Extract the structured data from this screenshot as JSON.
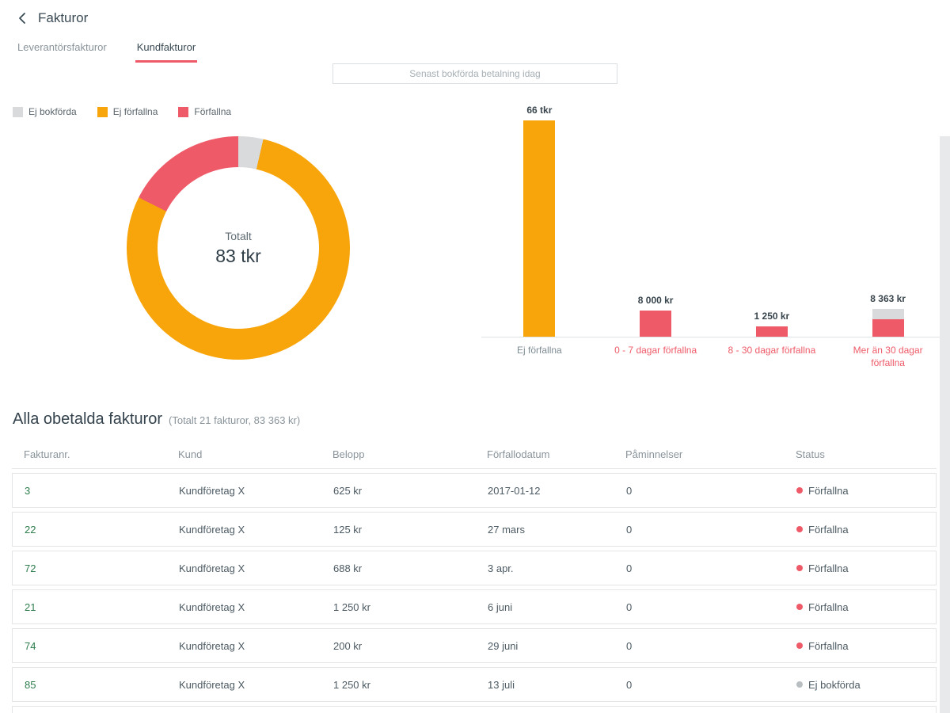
{
  "colors": {
    "accent_red": "#ee5a68",
    "orange": "#f7a50a",
    "gray_status": "#d8dadb",
    "green": "#2e7d4c",
    "text_primary": "#3a4a54",
    "text_secondary": "#8a949b"
  },
  "header": {
    "title": "Fakturor",
    "tabs": [
      {
        "label": "Leverantörsfakturor",
        "active": false
      },
      {
        "label": "Kundfakturor",
        "active": true
      }
    ]
  },
  "toolbar": {
    "last_payment_label": "Senast bokförda betalning idag"
  },
  "legend": [
    {
      "label": "Ej bokförda",
      "color": "#d8dadb"
    },
    {
      "label": "Ej förfallna",
      "color": "#f7a50a"
    },
    {
      "label": "Förfallna",
      "color": "#ee5a68"
    }
  ],
  "chart_data": [
    {
      "type": "pie",
      "center_label": "Totalt",
      "center_value": "83 tkr",
      "slices": [
        {
          "label": "Ej bokförda",
          "value": 3000,
          "color": "#d8dadb"
        },
        {
          "label": "Ej förfallna",
          "value": 65750,
          "color": "#f7a50a"
        },
        {
          "label": "Förfallna",
          "value": 14613,
          "color": "#ee5a68"
        }
      ],
      "total_label": "83 tkr"
    },
    {
      "type": "bar",
      "categories": [
        "Ej förfallna",
        "0 - 7 dagar förfallna",
        "8 - 30 dagar förfallna",
        "Mer än 30 dagar förfallna"
      ],
      "series": [
        {
          "name": "Ej förfallna",
          "color": "#f7a50a",
          "values": [
            65750,
            0,
            0,
            0
          ]
        },
        {
          "name": "Förfallna",
          "color": "#ee5a68",
          "values": [
            0,
            8000,
            1250,
            5363
          ]
        },
        {
          "name": "Ej bokförda",
          "color": "#d8dadb",
          "values": [
            0,
            0,
            0,
            3000
          ]
        }
      ],
      "value_labels": [
        "66 tkr",
        "8 000 kr",
        "1 250 kr",
        "8 363 kr"
      ],
      "ylim": [
        0,
        66000
      ],
      "grid": false,
      "legend_position": "top-left"
    }
  ],
  "section": {
    "title": "Alla obetalda fakturor",
    "subtitle": "(Totalt 21 fakturor, 83 363 kr)"
  },
  "table": {
    "columns": [
      "Fakturanr.",
      "Kund",
      "Belopp",
      "Förfallodatum",
      "Påminnelser",
      "Status"
    ],
    "rows": [
      {
        "nr": "3",
        "kund": "Kundföretag X",
        "belopp": "625 kr",
        "datum": "2017-01-12",
        "paminnelser": "0",
        "status": "Förfallna",
        "status_color": "#ee5a68"
      },
      {
        "nr": "22",
        "kund": "Kundföretag X",
        "belopp": "125 kr",
        "datum": "27 mars",
        "paminnelser": "0",
        "status": "Förfallna",
        "status_color": "#ee5a68"
      },
      {
        "nr": "72",
        "kund": "Kundföretag X",
        "belopp": "688 kr",
        "datum": "3 apr.",
        "paminnelser": "0",
        "status": "Förfallna",
        "status_color": "#ee5a68"
      },
      {
        "nr": "21",
        "kund": "Kundföretag X",
        "belopp": "1 250 kr",
        "datum": "6 juni",
        "paminnelser": "0",
        "status": "Förfallna",
        "status_color": "#ee5a68"
      },
      {
        "nr": "74",
        "kund": "Kundföretag X",
        "belopp": "200 kr",
        "datum": "29 juni",
        "paminnelser": "0",
        "status": "Förfallna",
        "status_color": "#ee5a68"
      },
      {
        "nr": "85",
        "kund": "Kundföretag X",
        "belopp": "1 250 kr",
        "datum": "13 juli",
        "paminnelser": "0",
        "status": "Ej bokförda",
        "status_color": "#b9bec1"
      }
    ]
  }
}
